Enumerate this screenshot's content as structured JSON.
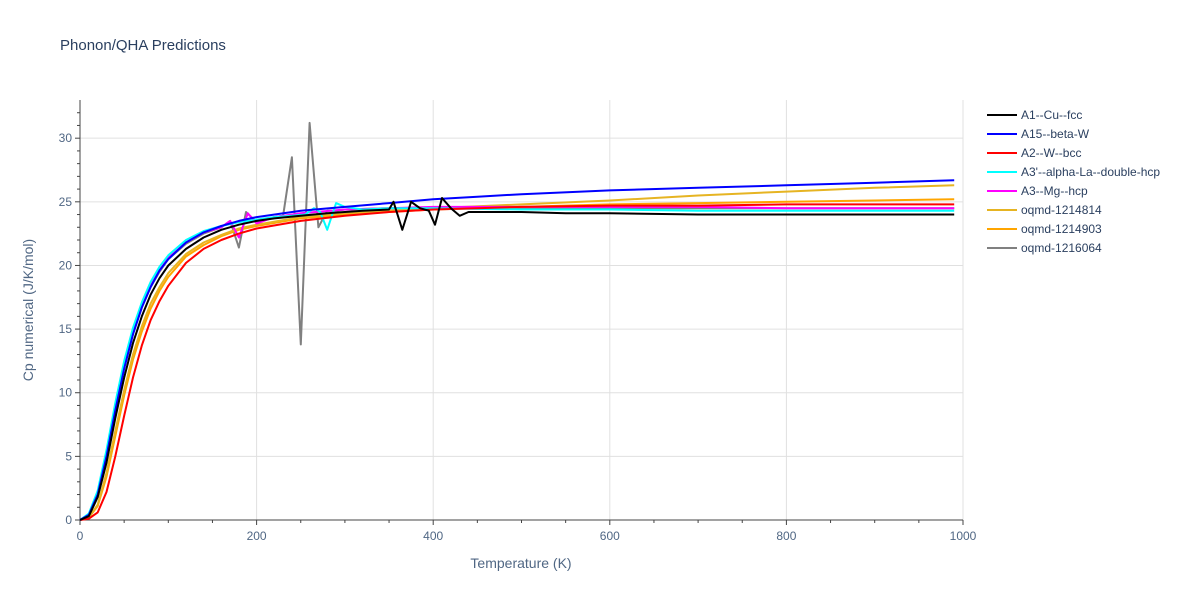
{
  "chart_data": {
    "type": "line",
    "title": "Phonon/QHA Predictions",
    "xlabel": "Temperature (K)",
    "ylabel": "Cp numerical (J/K/mol)",
    "xlim": [
      0,
      1000
    ],
    "ylim": [
      0,
      33
    ],
    "xticks": [
      0,
      200,
      400,
      600,
      800,
      1000
    ],
    "yticks": [
      0,
      5,
      10,
      15,
      20,
      25,
      30
    ],
    "grid": true,
    "legend_position": "top-right",
    "series": [
      {
        "name": "A1--Cu--fcc",
        "color": "#000000",
        "x": [
          0,
          10,
          20,
          30,
          40,
          50,
          60,
          70,
          80,
          90,
          100,
          120,
          140,
          160,
          180,
          200,
          220,
          250,
          280,
          320,
          350,
          355,
          365,
          375,
          385,
          395,
          402,
          410,
          420,
          430,
          440,
          470,
          500,
          550,
          600,
          700,
          800,
          900,
          990
        ],
        "y": [
          0,
          0.3,
          1.8,
          4.5,
          8.0,
          11.2,
          13.9,
          16.0,
          17.7,
          19.0,
          20.0,
          21.3,
          22.2,
          22.8,
          23.2,
          23.5,
          23.7,
          23.9,
          24.1,
          24.3,
          24.4,
          25.0,
          22.8,
          25.0,
          24.5,
          24.3,
          23.2,
          25.3,
          24.5,
          23.9,
          24.2,
          24.2,
          24.2,
          24.1,
          24.1,
          24.0,
          24.0,
          24.0,
          24.0
        ]
      },
      {
        "name": "A15--beta-W",
        "color": "#0000ff",
        "x": [
          0,
          10,
          20,
          30,
          40,
          50,
          60,
          70,
          80,
          90,
          100,
          120,
          140,
          160,
          180,
          200,
          250,
          300,
          350,
          400,
          450,
          500,
          600,
          700,
          800,
          900,
          990
        ],
        "y": [
          0,
          0.4,
          2.0,
          5.0,
          8.6,
          11.9,
          14.6,
          16.7,
          18.3,
          19.6,
          20.5,
          21.8,
          22.6,
          23.1,
          23.5,
          23.8,
          24.3,
          24.6,
          24.9,
          25.2,
          25.4,
          25.6,
          25.9,
          26.1,
          26.3,
          26.5,
          26.7
        ]
      },
      {
        "name": "A2--W--bcc",
        "color": "#ff0000",
        "x": [
          0,
          10,
          20,
          30,
          40,
          50,
          60,
          70,
          80,
          90,
          100,
          120,
          140,
          160,
          180,
          200,
          250,
          300,
          350,
          400,
          450,
          500,
          600,
          700,
          800,
          900,
          990
        ],
        "y": [
          0,
          0.1,
          0.6,
          2.2,
          5.0,
          8.2,
          11.2,
          13.7,
          15.7,
          17.2,
          18.4,
          20.2,
          21.3,
          22.0,
          22.5,
          22.9,
          23.5,
          23.9,
          24.2,
          24.4,
          24.5,
          24.6,
          24.7,
          24.7,
          24.8,
          24.8,
          24.8
        ]
      },
      {
        "name": "A3'--alpha-La--double-hcp",
        "color": "#00ffff",
        "x": [
          0,
          10,
          20,
          30,
          40,
          50,
          60,
          70,
          80,
          90,
          100,
          120,
          140,
          160,
          180,
          200,
          220,
          240,
          255,
          265,
          272,
          280,
          290,
          300,
          320,
          350,
          400,
          500,
          600,
          700,
          800,
          900,
          990
        ],
        "y": [
          0,
          0.5,
          2.3,
          5.5,
          9.2,
          12.5,
          15.1,
          17.1,
          18.7,
          19.9,
          20.8,
          22.0,
          22.7,
          23.1,
          23.4,
          23.6,
          23.8,
          23.9,
          24.0,
          24.5,
          24.2,
          22.8,
          24.9,
          24.6,
          24.4,
          24.5,
          24.5,
          24.4,
          24.4,
          24.3,
          24.3,
          24.3,
          24.3
        ]
      },
      {
        "name": "A3--Mg--hcp",
        "color": "#ff00ff",
        "x": [
          0,
          10,
          20,
          30,
          40,
          50,
          60,
          70,
          80,
          90,
          100,
          120,
          140,
          160,
          170,
          180,
          190,
          200,
          220,
          250,
          300,
          350,
          400,
          500,
          600,
          700,
          800,
          900,
          990
        ],
        "y": [
          0,
          0.4,
          2.1,
          5.2,
          8.8,
          12.1,
          14.7,
          16.8,
          18.4,
          19.6,
          20.6,
          21.8,
          22.6,
          23.0,
          23.5,
          22.2,
          24.1,
          23.3,
          23.8,
          24.1,
          24.4,
          24.5,
          24.6,
          24.6,
          24.6,
          24.6,
          24.5,
          24.5,
          24.5
        ]
      },
      {
        "name": "oqmd-1214814",
        "color": "#e6b422",
        "x": [
          0,
          10,
          20,
          30,
          40,
          50,
          60,
          70,
          80,
          90,
          100,
          120,
          140,
          160,
          180,
          200,
          250,
          300,
          350,
          400,
          500,
          600,
          700,
          800,
          900,
          990
        ],
        "y": [
          0,
          0.2,
          1.2,
          3.7,
          7.0,
          10.2,
          13.0,
          15.2,
          17.0,
          18.3,
          19.4,
          20.9,
          21.8,
          22.4,
          22.9,
          23.2,
          23.8,
          24.1,
          24.3,
          24.5,
          24.8,
          25.1,
          25.5,
          25.8,
          26.1,
          26.3
        ]
      },
      {
        "name": "oqmd-1214903",
        "color": "#ffa500",
        "x": [
          0,
          10,
          20,
          30,
          40,
          50,
          60,
          70,
          80,
          90,
          100,
          120,
          140,
          160,
          180,
          200,
          250,
          300,
          350,
          400,
          500,
          600,
          700,
          800,
          900,
          990
        ],
        "y": [
          0,
          0.2,
          1.1,
          3.4,
          6.6,
          9.8,
          12.6,
          14.8,
          16.6,
          18.0,
          19.1,
          20.7,
          21.6,
          22.3,
          22.8,
          23.1,
          23.7,
          24.0,
          24.2,
          24.4,
          24.6,
          24.8,
          24.9,
          25.0,
          25.1,
          25.2
        ]
      },
      {
        "name": "oqmd-1216064",
        "color": "#808080",
        "x": [
          0,
          10,
          20,
          30,
          40,
          50,
          60,
          70,
          80,
          90,
          100,
          120,
          140,
          160,
          170,
          180,
          188,
          200,
          210,
          220,
          230,
          240,
          250,
          260,
          270,
          280,
          290,
          300,
          350,
          400,
          500,
          600,
          700,
          800,
          900,
          990
        ],
        "y": [
          0,
          0.4,
          2.1,
          5.1,
          8.7,
          12.0,
          14.6,
          16.7,
          18.3,
          19.5,
          20.5,
          21.7,
          22.5,
          23.0,
          23.5,
          21.4,
          24.2,
          23.4,
          23.6,
          23.8,
          23.9,
          28.5,
          13.8,
          31.2,
          23.0,
          24.3,
          24.3,
          24.4,
          24.5,
          24.5,
          24.5,
          24.5,
          24.5,
          24.5,
          24.5,
          24.5
        ]
      }
    ]
  }
}
